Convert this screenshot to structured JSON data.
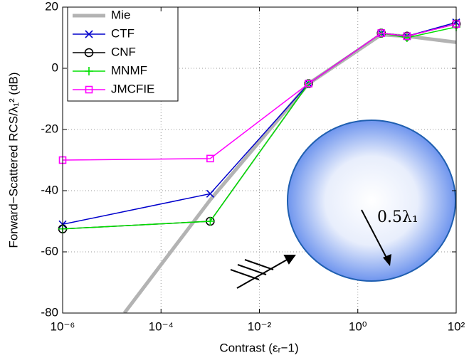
{
  "chart_data": {
    "type": "line",
    "xlabel": "Contrast (εᵣ−1)",
    "ylabel": "Forward−Scattered RCS/λ₁² (dB)",
    "annotation": "0.5λ₁",
    "xscale": "log",
    "xlim": [
      1e-06,
      100
    ],
    "xticks": [
      {
        "value": 1e-06,
        "label": "10⁻⁶"
      },
      {
        "value": 0.0001,
        "label": "10⁻⁴"
      },
      {
        "value": 0.01,
        "label": "10⁻²"
      },
      {
        "value": 1,
        "label": "10⁰"
      },
      {
        "value": 100,
        "label": "10²"
      }
    ],
    "ylim": [
      -80,
      20
    ],
    "yticks": [
      -80,
      -60,
      -40,
      -20,
      0,
      20
    ],
    "grid": true,
    "legend": "upper left",
    "series": [
      {
        "name": "Mie",
        "color": "#b3b3b3",
        "marker": "none",
        "x": [
          1.8e-05,
          0.001,
          0.1,
          3,
          10,
          100
        ],
        "values": [
          -80,
          -43,
          -5,
          11,
          10.5,
          8.5
        ]
      },
      {
        "name": "CTF",
        "color": "#0000cc",
        "marker": "x",
        "x": [
          1e-06,
          0.001,
          0.1,
          3,
          10,
          100
        ],
        "values": [
          -51,
          -41,
          -5,
          11.5,
          10.5,
          15
        ]
      },
      {
        "name": "CNF",
        "color": "#000000",
        "marker": "o",
        "x": [
          1e-06,
          0.001,
          0.1,
          3,
          10,
          100
        ],
        "values": [
          -52.5,
          -50,
          -5,
          11.5,
          10.5,
          14.5
        ]
      },
      {
        "name": "MNMF",
        "color": "#00e000",
        "marker": "+",
        "x": [
          1e-06,
          0.001,
          0.1,
          3,
          10,
          100
        ],
        "values": [
          -52.5,
          -50,
          -5,
          11.5,
          10,
          13.5
        ]
      },
      {
        "name": "JMCFIE",
        "color": "#ff00ff",
        "marker": "s",
        "x": [
          1e-06,
          0.001,
          0.1,
          3,
          10,
          100
        ],
        "values": [
          -30,
          -29.5,
          -5,
          11.5,
          10.5,
          14.5
        ]
      }
    ]
  }
}
